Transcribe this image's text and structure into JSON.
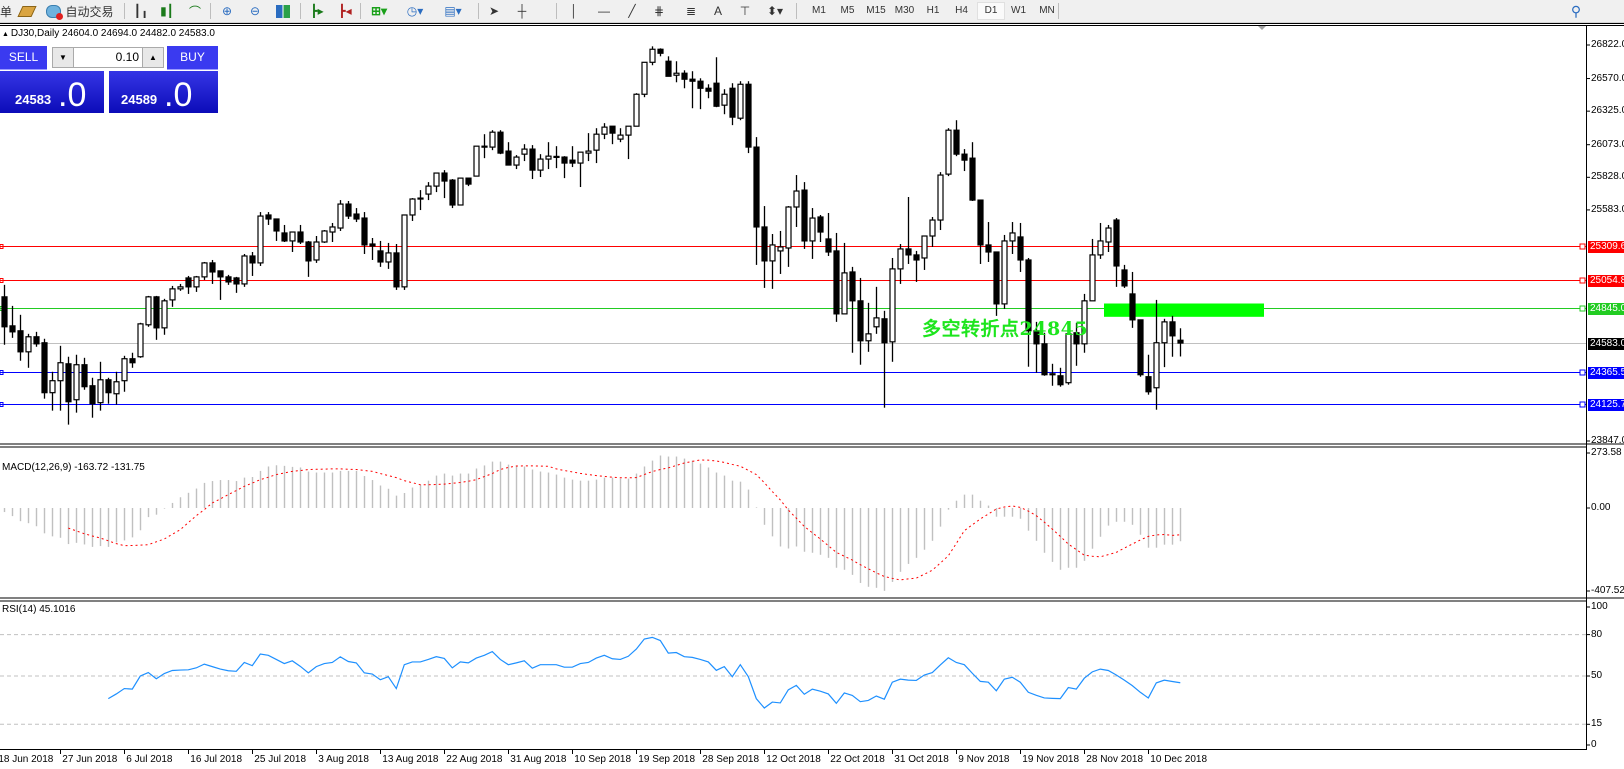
{
  "toolbar": {
    "cut_label": "单",
    "auto_trading_label": "自动交易",
    "icons": [
      "order-icon",
      "auto-trading-icon",
      "bar-chart-icon",
      "candlestick-icon",
      "line-chart-icon",
      "zoom-in-icon",
      "zoom-out-icon",
      "tile-windows-icon",
      "chart-shift-icon",
      "autoscroll-icon",
      "indicators-icon",
      "periods-icon",
      "templates-icon",
      "cursor-icon",
      "crosshair-icon",
      "vertical-line-icon",
      "horizontal-line-icon",
      "trendline-icon",
      "fibonacci-expansion-icon",
      "fibonacci-fan-icon",
      "text-icon",
      "text-label-icon",
      "arrows-icon",
      "search-icon"
    ],
    "text_tool": "A",
    "timeframes": [
      "M1",
      "M5",
      "M15",
      "M30",
      "H1",
      "H4",
      "D1",
      "W1",
      "MN"
    ],
    "active_timeframe": "D1"
  },
  "chart": {
    "symbol_info": "DJ30,Daily  24604.0 24694.0 24482.0 24583.0",
    "annotation": "多空转折点24845",
    "annotation_color": "#1de51d",
    "zone_color": "#00ff00"
  },
  "trade_panel": {
    "sell_label": "SELL",
    "buy_label": "BUY",
    "lot": "0.10",
    "sell_price_main": "24583",
    "sell_price_big": ".0",
    "buy_price_main": "24589",
    "buy_price_big": ".0"
  },
  "price_axis": [
    "26822.0",
    "26570.0",
    "26325.0",
    "26073.0",
    "25828.0",
    "25583.0",
    "23847.0"
  ],
  "levels": [
    {
      "price": 25309.6,
      "label": "25309.6",
      "color": "#ff0000"
    },
    {
      "price": 25054.8,
      "label": "25054.8",
      "color": "#ff0000"
    },
    {
      "price": 24845.0,
      "label": "24845.0",
      "color": "#22cc22"
    },
    {
      "price": 24583.0,
      "label": "24583.0",
      "color": "#000000",
      "line_color": "#c0c0c0"
    },
    {
      "price": 24365.5,
      "label": "24365.5",
      "color": "#0000ff"
    },
    {
      "price": 24125.7,
      "label": "24125.7",
      "color": "#0000ff"
    }
  ],
  "zone": {
    "price_top": 24880,
    "price_bottom": 24780
  },
  "macd": {
    "label": "MACD(12,26,9) -163.72 -131.75",
    "axis": [
      "273.58",
      "0.00",
      "-407.52"
    ],
    "hist": [
      -20,
      -40,
      -65,
      -75,
      -90,
      -125,
      -140,
      -147,
      -178,
      -172,
      -180,
      -192,
      -188,
      -192,
      -170,
      -160,
      -145,
      -110,
      -45,
      -33,
      -3,
      25,
      53,
      75,
      96,
      124,
      133,
      138,
      138,
      133,
      150,
      153,
      183,
      205,
      211,
      208,
      203,
      200,
      180,
      175,
      175,
      175,
      183,
      183,
      183,
      158,
      138,
      111,
      95,
      61,
      74,
      101,
      115,
      135,
      160,
      170,
      160,
      170,
      170,
      195,
      210,
      229,
      229,
      214,
      210,
      205,
      190,
      180,
      175,
      165,
      150,
      140,
      135,
      135,
      140,
      150,
      150,
      145,
      145,
      170,
      205,
      234,
      259,
      254,
      254,
      244,
      234,
      219,
      200,
      175,
      160,
      135,
      130,
      91,
      3,
      -83,
      -140,
      -190,
      -200,
      -190,
      -216,
      -221,
      -231,
      -246,
      -295,
      -305,
      -330,
      -370,
      -389,
      -394,
      -409,
      -365,
      -315,
      -276,
      -246,
      -206,
      -162,
      -92,
      -8,
      36,
      66,
      66,
      36,
      12,
      -43,
      -43,
      -43,
      -53,
      -112,
      -162,
      -221,
      -266,
      -305,
      -295,
      -295,
      -261,
      -201,
      -142,
      -87,
      -68,
      -68,
      -83,
      -132,
      -196,
      -196,
      -181,
      -181,
      -164
    ],
    "signal": [
      null,
      null,
      null,
      null,
      null,
      null,
      null,
      null,
      -99,
      -113,
      -127,
      -138,
      -148,
      -162,
      -176,
      -186,
      -185,
      -183,
      -181,
      -167,
      -153,
      -130,
      -107,
      -72,
      -38,
      -8,
      25,
      45,
      66,
      86,
      107,
      123,
      140,
      152,
      165,
      173,
      181,
      185,
      190,
      191,
      192,
      193,
      193,
      191,
      190,
      185,
      181,
      170,
      160,
      150,
      135,
      125,
      115,
      115,
      116,
      118,
      122,
      126,
      132,
      140,
      155,
      170,
      190,
      200,
      207,
      208,
      208,
      207,
      206,
      193,
      185,
      178,
      171,
      165,
      160,
      156,
      152,
      149,
      149,
      150,
      165,
      180,
      190,
      198,
      210,
      222,
      230,
      237,
      236,
      232,
      225,
      215,
      206,
      186,
      165,
      125,
      81,
      40,
      -10,
      -50,
      -91,
      -122,
      -153,
      -186,
      -219,
      -238,
      -257,
      -280,
      -300,
      -320,
      -338,
      -347,
      -355,
      -350,
      -346,
      -327,
      -307,
      -272,
      -236,
      -175,
      -112,
      -83,
      -54,
      -30,
      -5,
      5,
      10,
      3,
      -15,
      -38,
      -70,
      -104,
      -140,
      -178,
      -205,
      -233,
      -238,
      -241,
      -230,
      -219,
      -198,
      -178,
      -158,
      -140,
      -133,
      -131,
      -135,
      -132
    ],
    "hist_color": "#c0c0c0",
    "signal_color": "#ff0000",
    "range": [
      -407.52,
      273.58
    ]
  },
  "rsi": {
    "label": "RSI(14) 45.1016",
    "axis": [
      "100",
      "80",
      "50",
      "15",
      "0"
    ],
    "levels": [
      80,
      50,
      15
    ],
    "color": "#1e90ff",
    "values": [
      null,
      null,
      null,
      null,
      null,
      null,
      null,
      null,
      null,
      null,
      null,
      null,
      null,
      33.6,
      37,
      40.9,
      40.5,
      50,
      52.5,
      48,
      51.8,
      54,
      54.3,
      54.5,
      55.9,
      58.6,
      56.8,
      55,
      53.8,
      53.4,
      59.8,
      57.5,
      65.9,
      65,
      62,
      59,
      61,
      57,
      52.3,
      56.8,
      59,
      59.8,
      63.9,
      60.5,
      59.5,
      52.3,
      51.4,
      47.3,
      49.5,
      40.9,
      58.2,
      60.2,
      60.2,
      62,
      64,
      62.7,
      55.9,
      60.2,
      59.5,
      63,
      65,
      67.7,
      62,
      58.2,
      59.5,
      61,
      55.7,
      58.2,
      58.2,
      58.2,
      56.4,
      56.4,
      59,
      59.8,
      63,
      65,
      62.5,
      62,
      64.3,
      69.5,
      76.8,
      78,
      75.7,
      66.6,
      67,
      64,
      63.5,
      62,
      60.2,
      54.1,
      56.8,
      49.5,
      58.2,
      49.5,
      33.6,
      26.8,
      31.1,
      30.5,
      40,
      43.2,
      36.8,
      40.5,
      39,
      37,
      30.2,
      37.7,
      35.9,
      31.4,
      32.3,
      35.5,
      33.2,
      45.5,
      47.7,
      47,
      46.8,
      50.7,
      52.5,
      58,
      63.2,
      59.8,
      58.2,
      52,
      46.1,
      45.5,
      39.3,
      47.7,
      49.1,
      45.5,
      38.2,
      36,
      34.1,
      33.8,
      33.6,
      41.6,
      40.5,
      48.4,
      53,
      55,
      54,
      50.7,
      47,
      43,
      38.2,
      34.1,
      45,
      47,
      46,
      45.1
    ]
  },
  "dates": [
    "18 Jun 2018",
    "27 Jun 2018",
    "6 Jul 2018",
    "16 Jul 2018",
    "25 Jul 2018",
    "3 Aug 2018",
    "13 Aug 2018",
    "22 Aug 2018",
    "31 Aug 2018",
    "10 Sep 2018",
    "19 Sep 2018",
    "28 Sep 2018",
    "12 Oct 2018",
    "22 Oct 2018",
    "31 Oct 2018",
    "9 Nov 2018",
    "19 Nov 2018",
    "28 Nov 2018",
    "10 Dec 2018"
  ],
  "chart_data": {
    "type": "candlestick",
    "symbol": "DJ30",
    "timeframe": "Daily",
    "ylim": [
      23847,
      26822
    ],
    "ohlc": [
      [
        24930,
        25020,
        24570,
        24705
      ],
      [
        24712,
        24862,
        24622,
        24667
      ],
      [
        24675,
        24795,
        24450,
        24517
      ],
      [
        24517,
        24652,
        24397,
        24630
      ],
      [
        24630,
        24667,
        24555,
        24577
      ],
      [
        24585,
        24615,
        24165,
        24210
      ],
      [
        24210,
        24367,
        24075,
        24300
      ],
      [
        24300,
        24562,
        24075,
        24435
      ],
      [
        24427,
        24480,
        23970,
        24142
      ],
      [
        24157,
        24495,
        24060,
        24420
      ],
      [
        24420,
        24472,
        24232,
        24255
      ],
      [
        24262,
        24322,
        24022,
        24127
      ],
      [
        24135,
        24442,
        24075,
        24307
      ],
      [
        24307,
        24322,
        24127,
        24210
      ],
      [
        24202,
        24367,
        24120,
        24292
      ],
      [
        24300,
        24487,
        24217,
        24465
      ],
      [
        24465,
        24510,
        24397,
        24435
      ],
      [
        24480,
        24735,
        24472,
        24727
      ],
      [
        24720,
        24937,
        24705,
        24930
      ],
      [
        24930,
        24937,
        24607,
        24697
      ],
      [
        24697,
        24915,
        24645,
        24900
      ],
      [
        24907,
        25012,
        24855,
        24990
      ],
      [
        24990,
        25027,
        24975,
        25005
      ],
      [
        25072,
        25087,
        24952,
        25005
      ],
      [
        25005,
        25087,
        24967,
        25080
      ],
      [
        25080,
        25192,
        25057,
        25185
      ],
      [
        25185,
        25207,
        25027,
        25117
      ],
      [
        25125,
        25125,
        24907,
        25080
      ],
      [
        25080,
        25095,
        25020,
        25042
      ],
      [
        25072,
        25080,
        24960,
        25027
      ],
      [
        25027,
        25252,
        25005,
        25237
      ],
      [
        25237,
        25267,
        25087,
        25185
      ],
      [
        25185,
        25567,
        25162,
        25537
      ],
      [
        25545,
        25567,
        25470,
        25515
      ],
      [
        25515,
        25515,
        25350,
        25425
      ],
      [
        25410,
        25470,
        25342,
        25350
      ],
      [
        25350,
        25417,
        25267,
        25417
      ],
      [
        25417,
        25470,
        25327,
        25342
      ],
      [
        25342,
        25350,
        25080,
        25200
      ],
      [
        25207,
        25387,
        25185,
        25342
      ],
      [
        25342,
        25432,
        25335,
        25425
      ],
      [
        25417,
        25485,
        25342,
        25455
      ],
      [
        25447,
        25657,
        25425,
        25627
      ],
      [
        25627,
        25650,
        25515,
        25537
      ],
      [
        25552,
        25597,
        25492,
        25515
      ],
      [
        25522,
        25567,
        25252,
        25320
      ],
      [
        25327,
        25372,
        25207,
        25312
      ],
      [
        25275,
        25350,
        25155,
        25192
      ],
      [
        25192,
        25335,
        25140,
        25260
      ],
      [
        25260,
        25327,
        24982,
        25005
      ],
      [
        25005,
        25545,
        24982,
        25545
      ],
      [
        25545,
        25672,
        25500,
        25665
      ],
      [
        25665,
        25732,
        25582,
        25672
      ],
      [
        25702,
        25792,
        25657,
        25762
      ],
      [
        25762,
        25860,
        25717,
        25860
      ],
      [
        25860,
        25882,
        25672,
        25800
      ],
      [
        25807,
        25815,
        25597,
        25620
      ],
      [
        25620,
        25822,
        25620,
        25822
      ],
      [
        25822,
        25822,
        25762,
        25777
      ],
      [
        25837,
        26062,
        25837,
        26062
      ],
      [
        26062,
        26152,
        25972,
        26055
      ],
      [
        26055,
        26182,
        26032,
        26167
      ],
      [
        26167,
        26182,
        26002,
        26010
      ],
      [
        26025,
        26092,
        25920,
        25920
      ],
      [
        25920,
        25995,
        25890,
        25980
      ],
      [
        26002,
        26077,
        25950,
        26040
      ],
      [
        26040,
        26070,
        25815,
        25882
      ],
      [
        25882,
        26002,
        25830,
        25965
      ],
      [
        25965,
        26092,
        25890,
        25987
      ],
      [
        25980,
        26062,
        25897,
        25985
      ],
      [
        25980,
        25987,
        25822,
        25935
      ],
      [
        25957,
        26062,
        25905,
        25935
      ],
      [
        25935,
        26017,
        25755,
        26017
      ],
      [
        26010,
        26160,
        25950,
        26025
      ],
      [
        26032,
        26197,
        25935,
        26152
      ],
      [
        26152,
        26235,
        26115,
        26205
      ],
      [
        26212,
        26212,
        26077,
        26160
      ],
      [
        26115,
        26197,
        26092,
        26145
      ],
      [
        26145,
        26212,
        25965,
        26212
      ],
      [
        26212,
        26460,
        26212,
        26452
      ],
      [
        26452,
        26692,
        26430,
        26692
      ],
      [
        26692,
        26812,
        26670,
        26790
      ],
      [
        26790,
        26797,
        26737,
        26760
      ],
      [
        26700,
        26737,
        26587,
        26587
      ],
      [
        26595,
        26700,
        26542,
        26610
      ],
      [
        26610,
        26632,
        26497,
        26565
      ],
      [
        26565,
        26625,
        26347,
        26550
      ],
      [
        26550,
        26572,
        26340,
        26497
      ],
      [
        26497,
        26527,
        26422,
        26475
      ],
      [
        26535,
        26730,
        26355,
        26362
      ],
      [
        26370,
        26490,
        26302,
        26452
      ],
      [
        26497,
        26535,
        26220,
        26280
      ],
      [
        26272,
        26550,
        26257,
        26527
      ],
      [
        26527,
        26550,
        26010,
        26055
      ],
      [
        26055,
        26130,
        25170,
        25455
      ],
      [
        25455,
        25612,
        24997,
        25200
      ],
      [
        25200,
        25402,
        24990,
        25320
      ],
      [
        25275,
        25425,
        25102,
        25305
      ],
      [
        25297,
        25612,
        25155,
        25605
      ],
      [
        25605,
        25845,
        25455,
        25725
      ],
      [
        25732,
        25792,
        25290,
        25350
      ],
      [
        25350,
        25597,
        25215,
        25522
      ],
      [
        25530,
        25545,
        25342,
        25417
      ],
      [
        25365,
        25560,
        25237,
        25267
      ],
      [
        25275,
        25410,
        24742,
        24802
      ],
      [
        24802,
        25335,
        24802,
        25110
      ],
      [
        25117,
        25155,
        24510,
        24900
      ],
      [
        24900,
        25072,
        24420,
        24600
      ],
      [
        24600,
        24885,
        24517,
        24652
      ],
      [
        24705,
        25005,
        24652,
        24772
      ],
      [
        24765,
        24825,
        24097,
        24585
      ],
      [
        24592,
        25222,
        24442,
        25140
      ],
      [
        25140,
        25327,
        25027,
        25290
      ],
      [
        25290,
        25680,
        25177,
        25245
      ],
      [
        25245,
        25275,
        25042,
        25207
      ],
      [
        25222,
        25387,
        25132,
        25387
      ],
      [
        25387,
        25530,
        25305,
        25507
      ],
      [
        25507,
        25867,
        25432,
        25845
      ],
      [
        25852,
        26197,
        25837,
        26182
      ],
      [
        26182,
        26257,
        25987,
        26002
      ],
      [
        26002,
        26040,
        25875,
        25957
      ],
      [
        25972,
        26092,
        25650,
        25657
      ],
      [
        25657,
        25657,
        25177,
        25320
      ],
      [
        25320,
        25492,
        25192,
        25267
      ],
      [
        25267,
        25267,
        24787,
        24877
      ],
      [
        24877,
        25395,
        24840,
        25350
      ],
      [
        25350,
        25492,
        25252,
        25410
      ],
      [
        25380,
        25485,
        25117,
        25207
      ],
      [
        25207,
        25222,
        24405,
        24675
      ],
      [
        24675,
        24742,
        24360,
        24577
      ],
      [
        24577,
        24660,
        24337,
        24345
      ],
      [
        24345,
        24427,
        24262,
        24352
      ],
      [
        24337,
        24397,
        24255,
        24270
      ],
      [
        24285,
        24652,
        24270,
        24652
      ],
      [
        24660,
        24735,
        24412,
        24577
      ],
      [
        24577,
        24952,
        24510,
        24900
      ],
      [
        24900,
        25365,
        24900,
        25245
      ],
      [
        25245,
        25485,
        25215,
        25350
      ],
      [
        25342,
        25470,
        25267,
        25447
      ],
      [
        25507,
        25522,
        25005,
        25162
      ],
      [
        25132,
        25170,
        24997,
        25012
      ],
      [
        24952,
        25117,
        24697,
        24757
      ],
      [
        24757,
        24757,
        24330,
        24345
      ],
      [
        24330,
        24495,
        24195,
        24217
      ],
      [
        24247,
        24907,
        24082,
        24585
      ],
      [
        24585,
        24765,
        24402,
        24742
      ],
      [
        24742,
        24787,
        24480,
        24637
      ],
      [
        24604,
        24694,
        24482,
        24583
      ]
    ]
  }
}
